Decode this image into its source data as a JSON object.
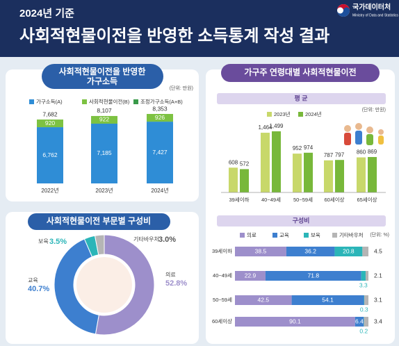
{
  "header": {
    "subtitle": "2024년 기준",
    "title": "사회적현물이전을 반영한 소득통계 작성 결과",
    "logo": "국가데이터처",
    "logo_en": "Ministry of Data and Statistics"
  },
  "chart_data": [
    {
      "type": "stacked-bar",
      "title": [
        "사회적현물이전을 반영한",
        "가구소득"
      ],
      "unit": "(단위: 만원)",
      "categories": [
        "2022년",
        "2023년",
        "2024년"
      ],
      "series": [
        {
          "name": "가구소득(A)",
          "color": "#2f8dd6",
          "values": [
            6762,
            7185,
            7427
          ],
          "value_labels": [
            "6,762",
            "7,185",
            "7,427"
          ]
        },
        {
          "name": "사회적현물이전(B)",
          "color": "#7dc242",
          "values": [
            920,
            922,
            926
          ]
        },
        {
          "name": "조정가구소득(A+B)",
          "color": "#3a9a4a",
          "values": [
            7682,
            8107,
            8353
          ],
          "value_labels": [
            "7,682",
            "8,107",
            "8,353"
          ],
          "label_only": true
        }
      ]
    },
    {
      "type": "donut",
      "title": "사회적현물이전 부문별 구성비",
      "categories": [
        "의료",
        "교육",
        "보육",
        "기타바우처"
      ],
      "values": [
        52.8,
        40.7,
        3.5,
        3.0
      ],
      "value_labels": [
        "52.8%",
        "40.7%",
        "3.5%",
        "3.0%"
      ],
      "colors": [
        "#9d8fcb",
        "#3d7fcf",
        "#2bb5b8",
        "#b5b5b5"
      ]
    },
    {
      "type": "grouped-bar",
      "title": "가구주 연령대별 사회적현물이전",
      "subtitle": "평 균",
      "unit": "(단위: 만원)",
      "categories": [
        "39세이하",
        "40~49세",
        "50~59세",
        "60세이상",
        "65세이상"
      ],
      "series": [
        {
          "name": "2023년",
          "color": "#c8d86a",
          "values": [
            608,
            1464,
            952,
            787,
            860
          ],
          "value_labels": [
            "608",
            "1,464",
            "952",
            "787",
            "860"
          ]
        },
        {
          "name": "2024년",
          "color": "#78b83a",
          "values": [
            572,
            1499,
            974,
            797,
            869
          ],
          "value_labels": [
            "572",
            "1,499",
            "974",
            "797",
            "869"
          ]
        }
      ]
    },
    {
      "type": "stacked-hbar",
      "title": "구성비",
      "unit": "(단위: %)",
      "categories": [
        "39세이하",
        "40~49세",
        "50~59세",
        "60세이상"
      ],
      "series": [
        {
          "name": "의료",
          "color": "#9d8fcb",
          "values": [
            38.5,
            22.9,
            42.5,
            90.1
          ]
        },
        {
          "name": "교육",
          "color": "#3d7fcf",
          "values": [
            36.2,
            71.8,
            54.1,
            6.4
          ]
        },
        {
          "name": "보육",
          "color": "#2bb5b8",
          "values": [
            20.8,
            3.3,
            0.3,
            0.2
          ]
        },
        {
          "name": "기타바우처",
          "color": "#b5b5b5",
          "values": [
            4.5,
            2.1,
            3.1,
            3.4
          ]
        }
      ]
    }
  ]
}
